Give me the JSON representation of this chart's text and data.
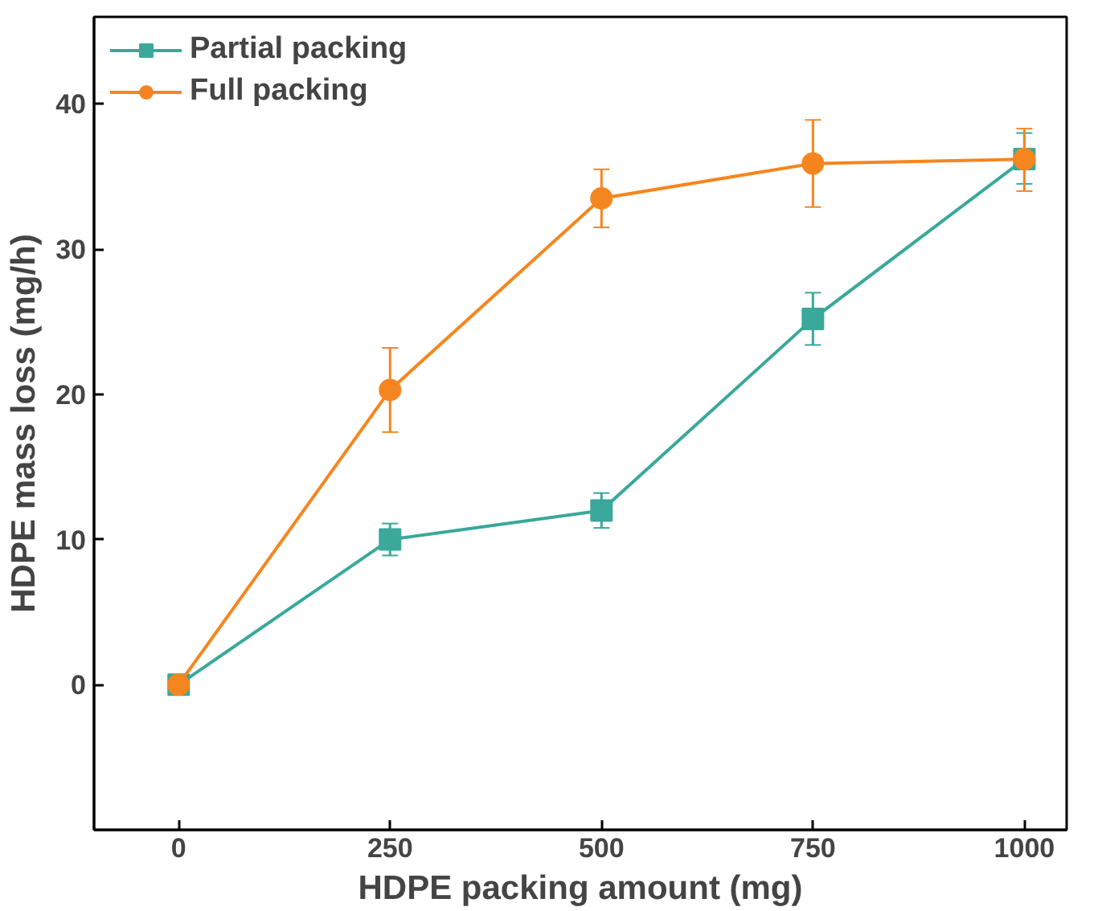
{
  "chart_data": {
    "type": "line",
    "xlabel": "HDPE packing amount (mg)",
    "ylabel": "HDPE mass loss (mg/h)",
    "x": [
      0,
      250,
      500,
      750,
      1000
    ],
    "series": [
      {
        "name": "Partial packing",
        "color": "#3aa89a",
        "marker": "square",
        "values": [
          0,
          10.0,
          12.0,
          25.2,
          36.2
        ],
        "errors": [
          null,
          1.1,
          1.2,
          1.8,
          [
            34.5,
            38.0
          ]
        ]
      },
      {
        "name": "Full packing",
        "color": "#f5861f",
        "marker": "circle",
        "values": [
          0,
          20.3,
          33.5,
          35.9,
          36.2
        ],
        "errors": [
          null,
          2.9,
          2.0,
          3.0,
          [
            34.0,
            38.3
          ]
        ]
      }
    ],
    "xlim": [
      -100,
      1050
    ],
    "ylim": [
      -10,
      46
    ],
    "xticks": [
      0,
      250,
      500,
      750,
      1000
    ],
    "yticks": [
      0,
      10,
      20,
      30,
      40
    ],
    "grid": false,
    "legend": "top left",
    "line_style": "solid"
  }
}
